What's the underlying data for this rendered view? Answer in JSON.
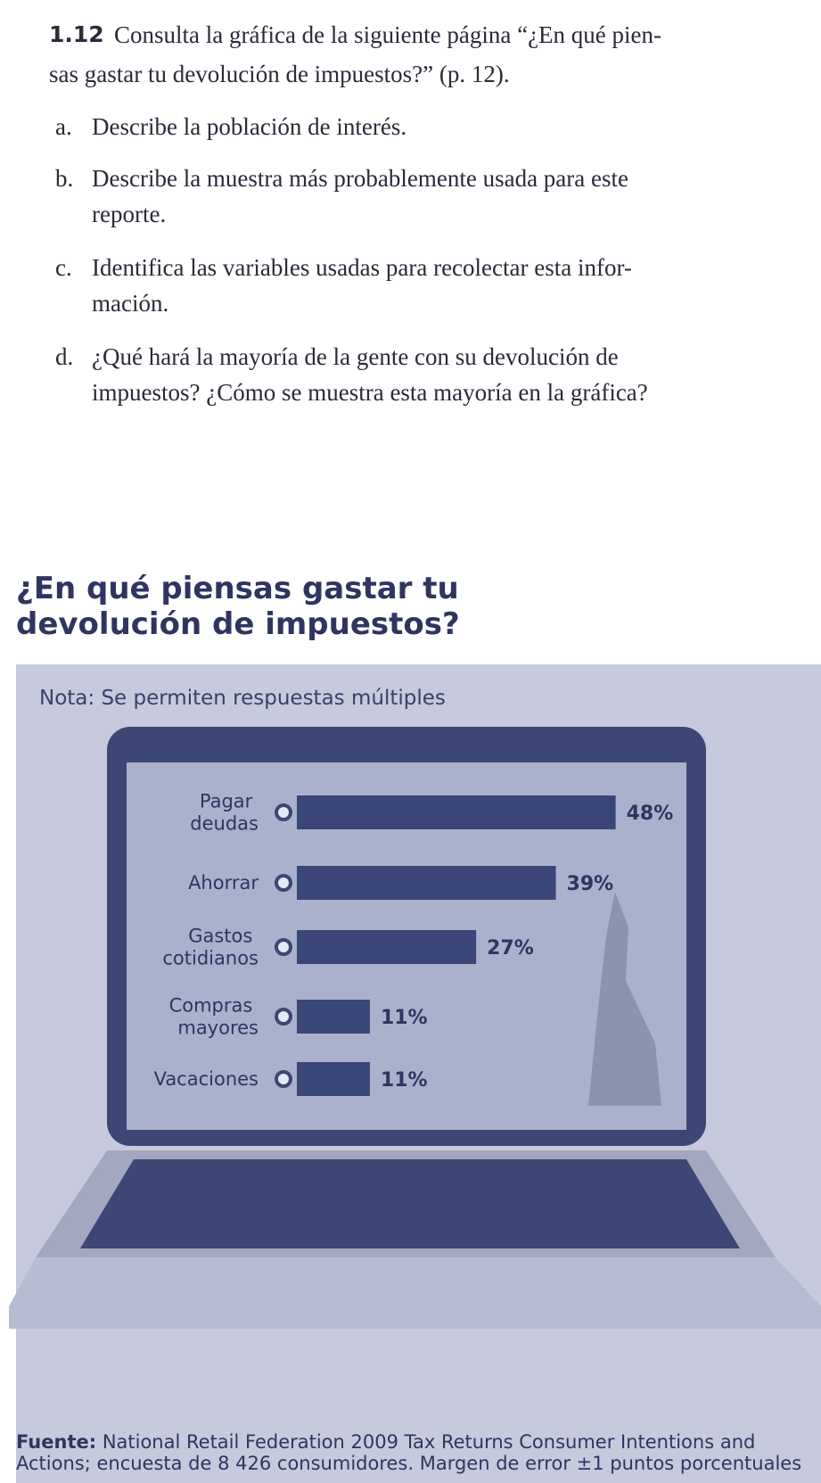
{
  "exercise": {
    "number": "1.12",
    "lines": [
      "Consulta la gráfica de la siguiente página “¿En qué pien-",
      "sas gastar tu devolución de impuestos?” (p. 12)."
    ],
    "items": [
      {
        "letter": "a.",
        "lines": [
          "Describe la población de interés."
        ]
      },
      {
        "letter": "b.",
        "lines": [
          "Describe la muestra más probablemente usada para este",
          "reporte."
        ]
      },
      {
        "letter": "c.",
        "lines": [
          "Identifica las variables usadas para recolectar esta infor-",
          "mación."
        ]
      },
      {
        "letter": "d.",
        "lines": [
          "¿Qué hará la mayoría de la gente con su devolución de",
          "impuestos? ¿Cómo se muestra esta mayoría en la gráfica?"
        ]
      }
    ]
  },
  "chart_data": {
    "type": "bar",
    "title": "¿En qué piensas gastar tu devolución de impuestos?",
    "subtitle": "Nota: Se permiten respuestas múltiples",
    "categories": [
      "Pagar deudas",
      "Ahorrar",
      "Gastos cotidianos",
      "Compras mayores",
      "Vacaciones"
    ],
    "values": [
      48,
      39,
      27,
      11,
      11
    ],
    "value_labels": [
      "48%",
      "39%",
      "27%",
      "11%",
      "11%"
    ],
    "color": "#3b4678",
    "source_label": "Fuente:",
    "source": "National Retail Federation 2009 Tax Returns Consumer Intentions and Actions; encuesta de 8 426 consumidores. Margen de error ±1 puntos porcentuales"
  }
}
